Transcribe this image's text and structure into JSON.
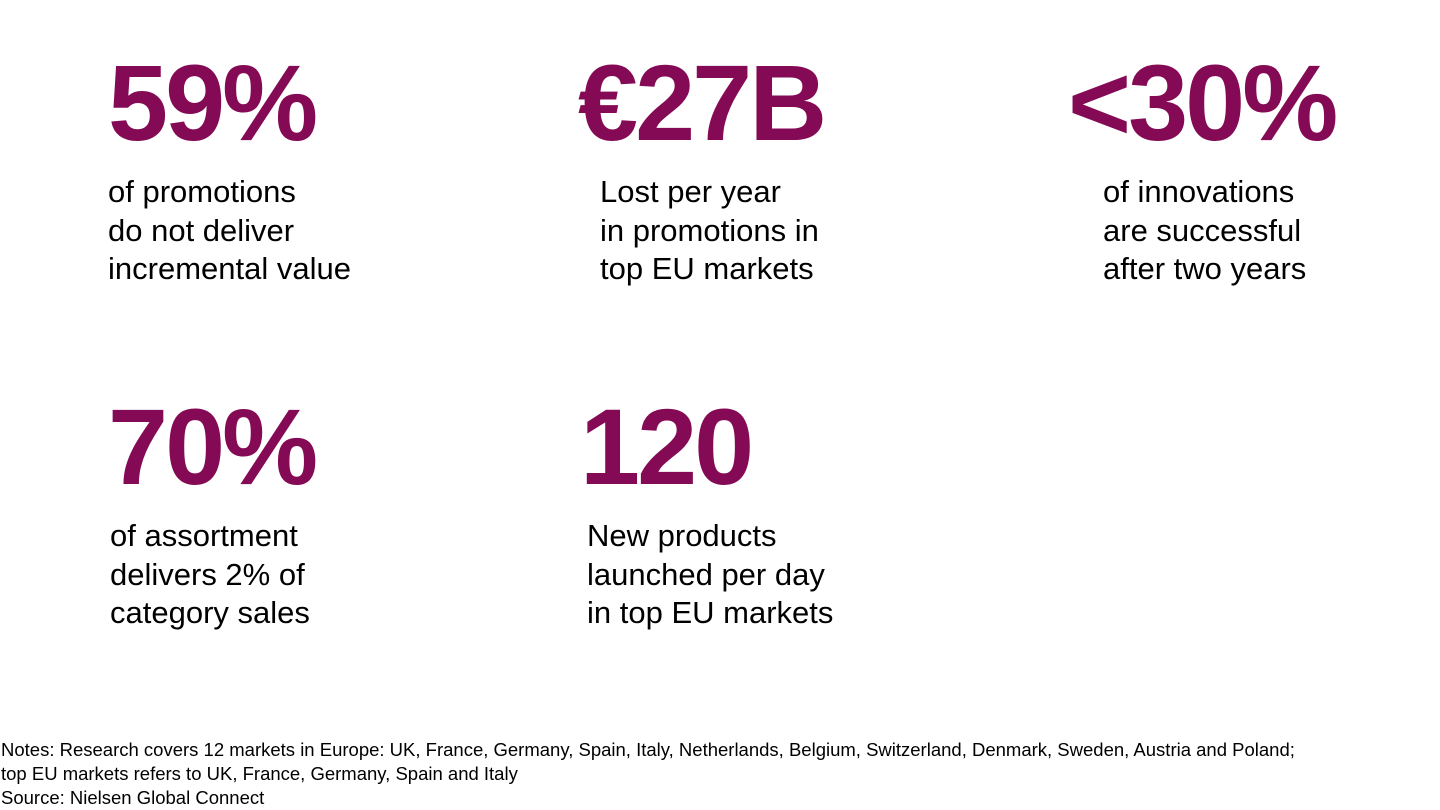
{
  "accent_color": "#850a55",
  "stats": [
    {
      "value": "59%",
      "description": [
        "of promotions",
        "do not deliver",
        "incremental value"
      ]
    },
    {
      "value": "€27B",
      "description": [
        "Lost per year",
        "in promotions in",
        "top EU markets"
      ]
    },
    {
      "value": "<30%",
      "description": [
        "of innovations",
        "are successful",
        "after two years"
      ]
    },
    {
      "value": "70%",
      "description": [
        "of assortment",
        "delivers 2% of",
        "category sales"
      ]
    },
    {
      "value": "120",
      "description": [
        "New products",
        "launched per day",
        "in top EU markets"
      ]
    }
  ],
  "footer": {
    "notes_line1": "Notes: Research covers 12 markets in Europe: UK, France, Germany, Spain, Italy, Netherlands, Belgium, Switzerland, Denmark, Sweden, Austria and Poland;",
    "notes_line2": "top EU markets refers to UK, France, Germany, Spain and Italy",
    "source": "Source: Nielsen Global Connect"
  }
}
